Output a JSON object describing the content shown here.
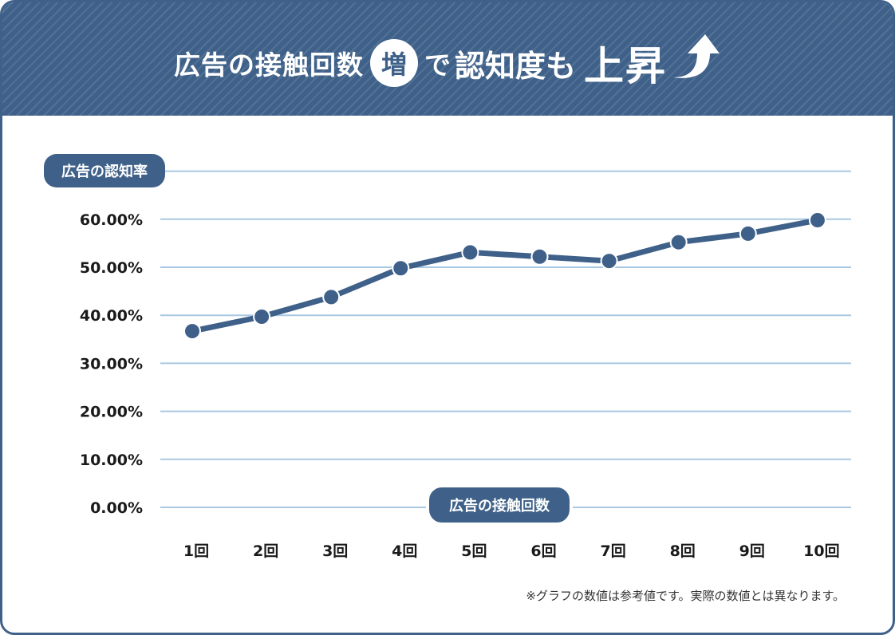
{
  "header": {
    "title_part1": "広告の接触回数",
    "title_badge": "増",
    "title_part2": "で",
    "title_part3": "認知度も",
    "title_part4": "上昇",
    "arrow_icon": "up-arrow-icon"
  },
  "colors": {
    "primary": "#3f6189",
    "grid": "#a9c8e2",
    "background": "#ffffff"
  },
  "chart_data": {
    "type": "line",
    "title": "広告の接触回数増で認知度も上昇",
    "ylabel": "広告の認知率",
    "xlabel": "広告の接触回数",
    "ylim": [
      0,
      70
    ],
    "yticks": [
      "0.00%",
      "10.00%",
      "20.00%",
      "30.00%",
      "40.00%",
      "50.00%",
      "60.00%"
    ],
    "categories": [
      "1回",
      "2回",
      "3回",
      "4回",
      "5回",
      "6回",
      "7回",
      "8回",
      "9回",
      "10回"
    ],
    "series": [
      {
        "name": "広告の認知率",
        "values": [
          36.7,
          39.7,
          43.8,
          49.8,
          53.1,
          52.2,
          51.3,
          55.2,
          57.0,
          59.8
        ]
      }
    ],
    "grid": true
  },
  "footnote": "※グラフの数値は参考値です。実際の数値とは異なります。"
}
